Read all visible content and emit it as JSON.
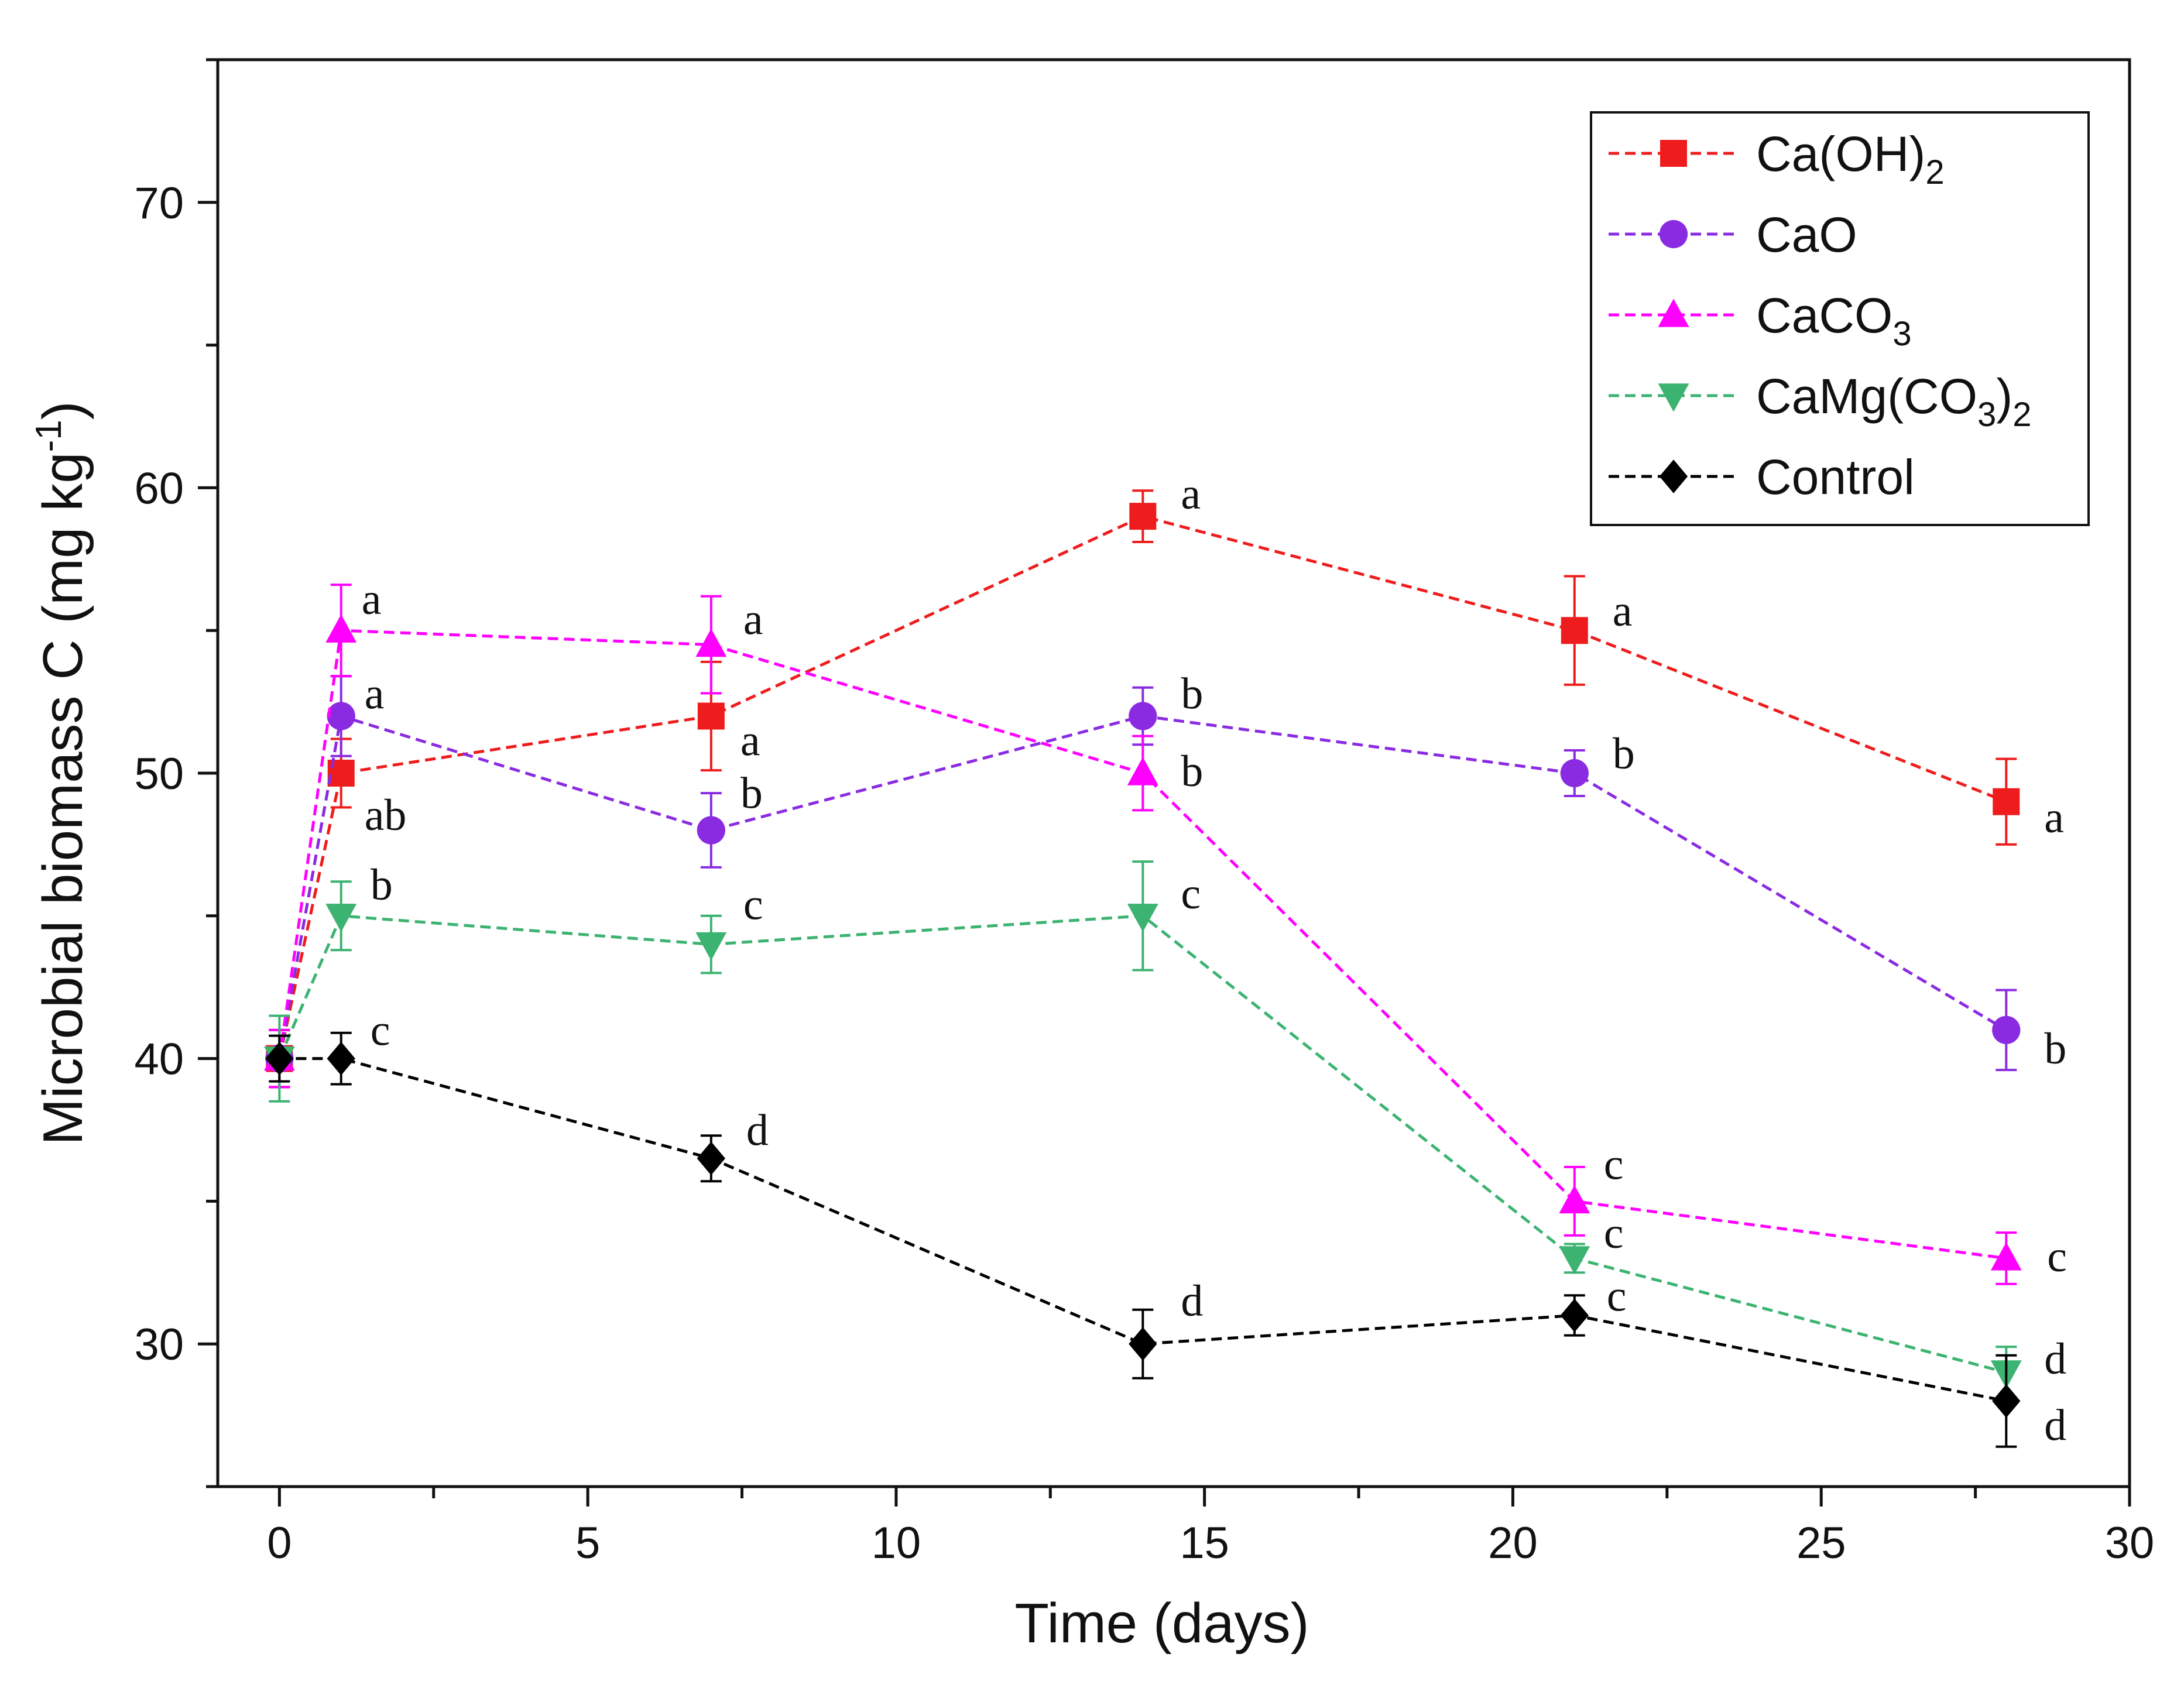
{
  "chart_data": {
    "type": "line",
    "title": "",
    "xlabel": "Time (days)",
    "ylabel": {
      "main": "Microbial biomass C (mg kg",
      "sup": "-1",
      "end": ")"
    },
    "xlim": [
      -1,
      30
    ],
    "ylim": [
      25,
      75
    ],
    "xticks": [
      0,
      5,
      10,
      15,
      20,
      25,
      30
    ],
    "xtick_labels": [
      "0",
      "5",
      "10",
      "15",
      "20",
      "25",
      "30"
    ],
    "yticks": [
      30,
      40,
      50,
      60,
      70
    ],
    "ytick_labels": [
      "30",
      "40",
      "50",
      "60",
      "70"
    ],
    "legend_position": "top-right",
    "x": [
      0,
      1,
      7,
      14,
      21,
      28
    ],
    "series": [
      {
        "name": "Ca(OH)2",
        "label_main": "Ca(OH)",
        "label_sub": "2",
        "label_tail": "",
        "color": "#ee1c1c",
        "marker": "square",
        "values": [
          40,
          50,
          52,
          59,
          55,
          49
        ],
        "errors": [
          1.0,
          1.2,
          1.9,
          0.9,
          1.9,
          1.5
        ],
        "letters": [
          "",
          "ab",
          "a",
          "a",
          "a",
          "a"
        ]
      },
      {
        "name": "CaO",
        "label_main": "CaO",
        "label_sub": "",
        "label_tail": "",
        "color": "#8a2be2",
        "marker": "circle",
        "values": [
          40,
          52,
          48,
          52,
          50,
          41
        ],
        "errors": [
          1.0,
          1.4,
          1.3,
          1.0,
          0.8,
          1.4
        ],
        "letters": [
          "",
          "a",
          "b",
          "b",
          "b",
          "b"
        ]
      },
      {
        "name": "CaCO3",
        "label_main": "CaCO",
        "label_sub": "3",
        "label_tail": "",
        "color": "#ff00ff",
        "marker": "triangle-up",
        "values": [
          40,
          55,
          54.5,
          50,
          35,
          33
        ],
        "errors": [
          1.0,
          1.6,
          1.7,
          1.3,
          1.2,
          0.9
        ],
        "letters": [
          "",
          "a",
          "a",
          "b",
          "c",
          "c"
        ]
      },
      {
        "name": "CaMg(CO3)2",
        "label_main": "CaMg(CO",
        "label_sub": "3",
        "label_tail": ")",
        "label_sub2": "2",
        "color": "#3cb371",
        "marker": "triangle-down",
        "values": [
          40,
          45,
          44,
          45,
          33,
          29
        ],
        "errors": [
          1.5,
          1.2,
          1.0,
          1.9,
          0.5,
          0.9
        ],
        "letters": [
          "",
          "b",
          "c",
          "c",
          "c",
          "d"
        ]
      },
      {
        "name": "Control",
        "label_main": "Control",
        "label_sub": "",
        "label_tail": "",
        "color": "#000000",
        "marker": "diamond",
        "values": [
          40,
          40,
          36.5,
          30,
          31,
          28
        ],
        "errors": [
          0.8,
          0.9,
          0.8,
          1.2,
          0.7,
          1.6
        ],
        "letters": [
          "",
          "c",
          "d",
          "d",
          "c",
          "d"
        ]
      }
    ]
  }
}
